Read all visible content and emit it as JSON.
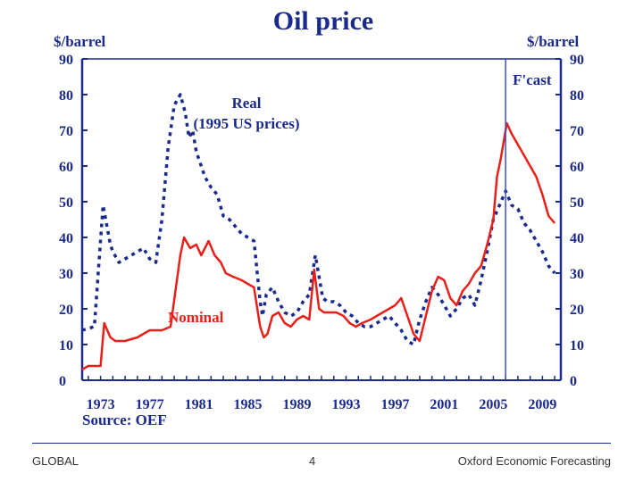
{
  "colors": {
    "axis": "#1a2a8c",
    "real": "#1a2a8c",
    "nominal": "#e8201a",
    "forecast_line": "#3a4fc8"
  },
  "footer": {
    "left": "GLOBAL",
    "center": "4",
    "right": "Oxford Economic Forecasting"
  },
  "chart_data": {
    "type": "line",
    "title": "Oil price",
    "ylabel_left": "$/barrel",
    "ylabel_right": "$/barrel",
    "source": "Source: OEF",
    "xlim": [
      1971.5,
      2010.5
    ],
    "ylim": [
      0,
      90
    ],
    "x_ticks": [
      "1973",
      "1977",
      "1981",
      "1985",
      "1989",
      "1993",
      "1997",
      "2001",
      "2005",
      "2009"
    ],
    "y_ticks": [
      0,
      10,
      20,
      30,
      40,
      50,
      60,
      70,
      80,
      90
    ],
    "forecast_start": 2006.0,
    "forecast_label": "F'cast",
    "annotations": [
      {
        "text": "Real",
        "series": "real"
      },
      {
        "text": "(1995 US prices)",
        "series": "real"
      },
      {
        "text": "Nominal",
        "series": "nominal"
      }
    ],
    "series": [
      {
        "name": "Real",
        "style": "dotted",
        "x": [
          1971.5,
          1972.5,
          1973.2,
          1973.8,
          1974.0,
          1974.5,
          1975,
          1975.5,
          1976,
          1976.5,
          1977,
          1977.5,
          1978,
          1978.5,
          1979,
          1979.5,
          1979.9,
          1980.2,
          1980.5,
          1980.8,
          1981,
          1981.5,
          1982,
          1982.5,
          1983,
          1983.5,
          1984,
          1984.5,
          1985,
          1985.5,
          1986.0,
          1986.2,
          1986.5,
          1987,
          1987.5,
          1988,
          1988.5,
          1989,
          1989.5,
          1990.0,
          1990.5,
          1990.8,
          1991.1,
          1991.5,
          1992,
          1992.5,
          1993,
          1993.5,
          1994,
          1994.5,
          1995,
          1995.5,
          1996,
          1996.5,
          1997,
          1997.5,
          1998,
          1998.5,
          1999,
          1999.5,
          2000,
          2000.5,
          2001,
          2001.5,
          2002,
          2002.5,
          2003,
          2003.5,
          2004,
          2004.5,
          2005,
          2005.5,
          2006.0,
          2006.5,
          2007,
          2007.5,
          2008,
          2008.5,
          2009,
          2009.5,
          2010.0
        ],
        "y": [
          14,
          15,
          49,
          38,
          36,
          33,
          34,
          35,
          36,
          37,
          34,
          33,
          45,
          65,
          77,
          80,
          75,
          68,
          70,
          64,
          62,
          57,
          54,
          52,
          46,
          45,
          43,
          41,
          40,
          39,
          22,
          18,
          24,
          26,
          22,
          19,
          18,
          19,
          22,
          24,
          35,
          29,
          23,
          22,
          22,
          21,
          19,
          18,
          16,
          15,
          15,
          16,
          17,
          18,
          16,
          14,
          11,
          10,
          17,
          22,
          26,
          24,
          21,
          18,
          20,
          23,
          24,
          21,
          28,
          36,
          45,
          49,
          53,
          49,
          48,
          44,
          42,
          39,
          36,
          32,
          30
        ]
      },
      {
        "name": "Nominal",
        "style": "solid",
        "x": [
          1971.5,
          1972.0,
          1973.0,
          1973.3,
          1973.8,
          1974.2,
          1975,
          1976,
          1976.5,
          1977,
          1977.5,
          1978,
          1978.7,
          1979.5,
          1979.8,
          1980.3,
          1980.8,
          1981.2,
          1981.8,
          1982.3,
          1982.8,
          1983.2,
          1983.8,
          1984.5,
          1985,
          1985.5,
          1986.0,
          1986.3,
          1986.6,
          1987,
          1987.5,
          1988,
          1988.5,
          1989,
          1989.5,
          1990.0,
          1990.4,
          1990.8,
          1991.2,
          1991.7,
          1992.2,
          1992.8,
          1993.3,
          1993.8,
          1994.3,
          1995,
          1995.5,
          1996,
          1996.5,
          1997,
          1997.5,
          1998,
          1998.5,
          1999,
          1999.5,
          2000,
          2000.5,
          2001,
          2001.5,
          2002,
          2002.5,
          2003,
          2003.5,
          2004,
          2004.5,
          2005,
          2005.3,
          2005.6,
          2005.9,
          2006.1,
          2006.5,
          2007,
          2007.5,
          2008,
          2008.5,
          2009,
          2009.5,
          2010.0
        ],
        "y": [
          3,
          4,
          4,
          16,
          12,
          11,
          11,
          12,
          13,
          14,
          14,
          14,
          15,
          35,
          40,
          37,
          38,
          35,
          39,
          35,
          33,
          30,
          29,
          28,
          27,
          26,
          15,
          12,
          13,
          18,
          19,
          16,
          15,
          17,
          18,
          17,
          31,
          20,
          19,
          19,
          19,
          18,
          16,
          15,
          16,
          17,
          18,
          19,
          20,
          21,
          23,
          18,
          13,
          11,
          18,
          25,
          29,
          28,
          23,
          21,
          25,
          27,
          30,
          32,
          38,
          45,
          57,
          62,
          68,
          72,
          69,
          66,
          63,
          60,
          57,
          52,
          46,
          44
        ]
      }
    ]
  }
}
